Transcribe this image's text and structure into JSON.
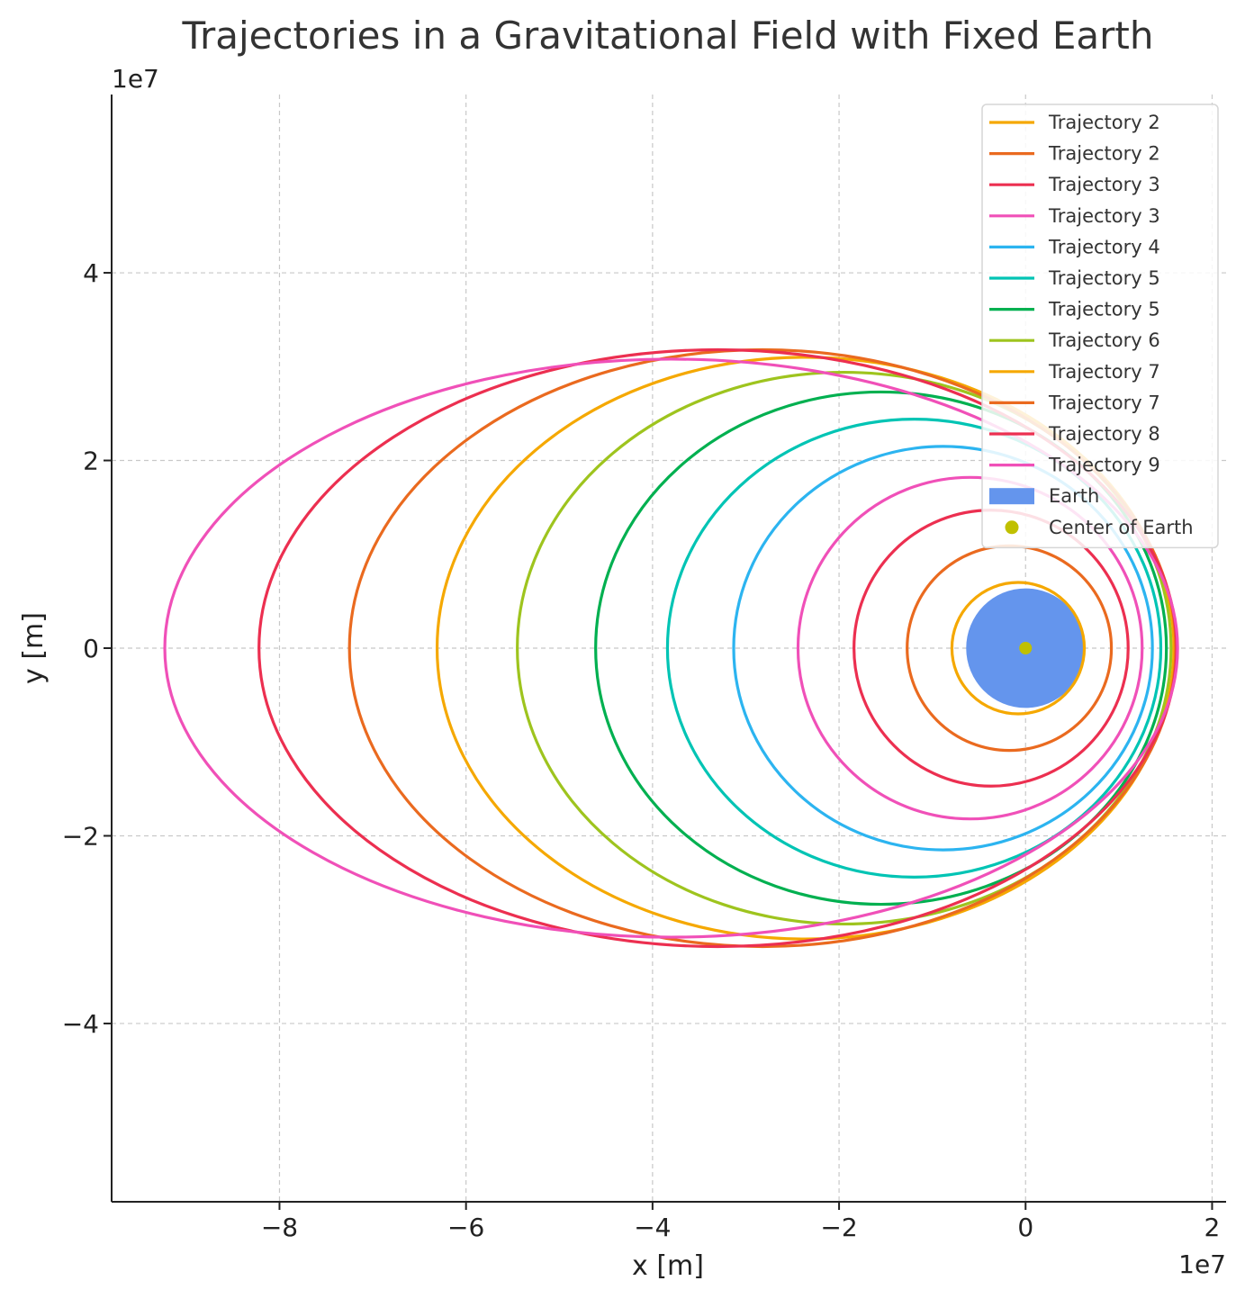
{
  "chart_data": {
    "type": "line",
    "title": "Trajectories in a Gravitational Field with Fixed Earth",
    "xlabel": "x [m]",
    "ylabel": "y [m]",
    "x_offset_label": "1e7",
    "y_offset_label": "1e7",
    "xlim": [
      -9.8,
      2.15
    ],
    "ylim": [
      -5.9,
      5.9
    ],
    "x_ticks": [
      {
        "value": -8,
        "label": "−8"
      },
      {
        "value": -6,
        "label": "−6"
      },
      {
        "value": -4,
        "label": "−4"
      },
      {
        "value": -2,
        "label": "−2"
      },
      {
        "value": 0,
        "label": "0"
      },
      {
        "value": 2,
        "label": "2"
      }
    ],
    "y_ticks": [
      {
        "value": 4,
        "label": "4"
      },
      {
        "value": 2,
        "label": "2"
      },
      {
        "value": 0,
        "label": "0"
      },
      {
        "value": -2,
        "label": "−2"
      },
      {
        "value": -4,
        "label": "−4"
      }
    ],
    "grid": true,
    "legend_position": "top-right",
    "series": [
      {
        "name": "Trajectory 2",
        "color": "#f5a800",
        "x_min": -0.79,
        "x_max": 0.63,
        "semi_minor": 0.7
      },
      {
        "name": "Trajectory 2",
        "color": "#ea6a1f",
        "x_min": -1.27,
        "x_max": 0.92,
        "semi_minor": 1.09
      },
      {
        "name": "Trajectory 3",
        "color": "#ec2f50",
        "x_min": -1.84,
        "x_max": 1.1,
        "semi_minor": 1.47
      },
      {
        "name": "Trajectory 3",
        "color": "#f050b8",
        "x_min": -2.44,
        "x_max": 1.25,
        "semi_minor": 1.82
      },
      {
        "name": "Trajectory 4",
        "color": "#2cb4f0",
        "x_min": -3.13,
        "x_max": 1.36,
        "semi_minor": 2.15
      },
      {
        "name": "Trajectory 5",
        "color": "#00c4b4",
        "x_min": -3.84,
        "x_max": 1.45,
        "semi_minor": 2.44
      },
      {
        "name": "Trajectory 5",
        "color": "#00b050",
        "x_min": -4.61,
        "x_max": 1.51,
        "semi_minor": 2.73
      },
      {
        "name": "Trajectory 6",
        "color": "#9ec41e",
        "x_min": -5.45,
        "x_max": 1.56,
        "semi_minor": 2.94
      },
      {
        "name": "Trajectory 7",
        "color": "#f5a800",
        "x_min": -6.31,
        "x_max": 1.59,
        "semi_minor": 3.1
      },
      {
        "name": "Trajectory 7",
        "color": "#ea6a1f",
        "x_min": -7.25,
        "x_max": 1.61,
        "semi_minor": 3.18
      },
      {
        "name": "Trajectory 8",
        "color": "#ec2f50",
        "x_min": -8.22,
        "x_max": 1.62,
        "semi_minor": 3.18
      },
      {
        "name": "Trajectory 9",
        "color": "#f050b8",
        "x_min": -9.23,
        "x_max": 1.63,
        "semi_minor": 3.08
      }
    ],
    "earth": {
      "name": "Earth",
      "color": "#6495ed",
      "center": [
        0,
        0
      ],
      "radius": 0.6371
    },
    "center_marker": {
      "name": "Center of Earth",
      "color": "#c0c000",
      "x": 0,
      "y": 0
    }
  }
}
